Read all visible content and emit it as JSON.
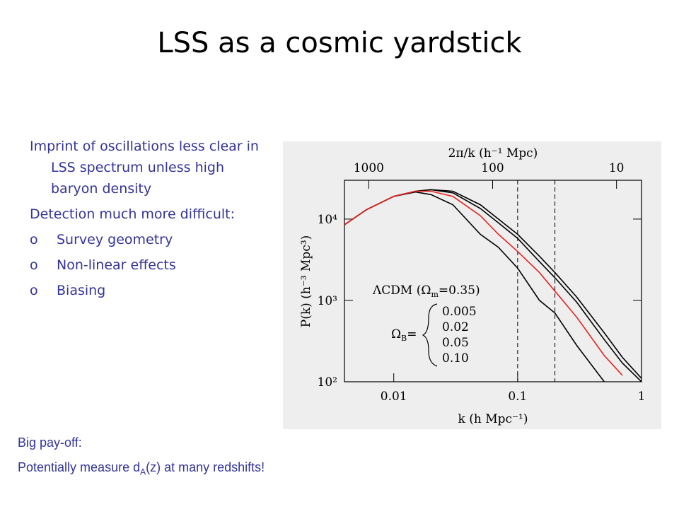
{
  "title": "LSS as a cosmic yardstick",
  "bullets": [
    {
      "text": "Imprint of oscillations less clear in LSS spectrum unless high baryon density"
    },
    {
      "text": "Detection much more difficult:"
    },
    {
      "marker": "o",
      "text": "Survey geometry"
    },
    {
      "marker": "o",
      "text": "Non-linear effects"
    },
    {
      "marker": "o",
      "text": "Biasing"
    }
  ],
  "footer": {
    "line1": "Big pay-off:",
    "line2": [
      "Potentially measure d",
      "A",
      "(z) at many redshifts!"
    ]
  },
  "chart_data": {
    "type": "line",
    "x_label": "k (h Mpc⁻¹)",
    "y_label": "P(k) (h⁻³ Mpc³)",
    "top_axis_label": "2π/k (h⁻¹ Mpc)",
    "annotation": [
      "ΛCDM (Ω",
      "m",
      "=0.35)"
    ],
    "legend_title": [
      "Ω",
      "B",
      "="
    ],
    "x_log": true,
    "y_log": true,
    "xlim": [
      0.004,
      1
    ],
    "ylim": [
      100,
      30000
    ],
    "xticks": [
      0.01,
      0.1,
      1
    ],
    "yticks": [
      {
        "value": 100,
        "label": "10²"
      },
      {
        "value": 1000,
        "label": "10³"
      },
      {
        "value": 10000,
        "label": "10⁴"
      }
    ],
    "top_ticks": [
      1000,
      100,
      10
    ],
    "vlines": [
      0.1,
      0.2
    ],
    "x": [
      0.004,
      0.006,
      0.01,
      0.015,
      0.02,
      0.03,
      0.05,
      0.07,
      0.1,
      0.15,
      0.2,
      0.3,
      0.5,
      0.7,
      1
    ],
    "series": [
      {
        "name": "0.005",
        "color": "#000000",
        "values": [
          8500,
          13000,
          19000,
          22000,
          23000,
          22000,
          15000,
          10000,
          6500,
          3500,
          2200,
          1100,
          400,
          200,
          110
        ]
      },
      {
        "name": "0.02",
        "color": "#000000",
        "values": [
          8500,
          13000,
          19000,
          22000,
          23000,
          21000,
          13500,
          9000,
          5800,
          3000,
          1900,
          950,
          330,
          170,
          100
        ]
      },
      {
        "name": "0.05",
        "color": "#e8231f",
        "values": [
          8500,
          13000,
          19000,
          22000,
          22000,
          19000,
          11000,
          6500,
          4000,
          2200,
          1300,
          620,
          210,
          120,
          null
        ]
      },
      {
        "name": "0.10",
        "color": "#000000",
        "values": [
          8500,
          13000,
          19000,
          21500,
          20000,
          15000,
          6500,
          4500,
          2500,
          1000,
          700,
          280,
          100,
          null,
          null
        ]
      }
    ]
  }
}
